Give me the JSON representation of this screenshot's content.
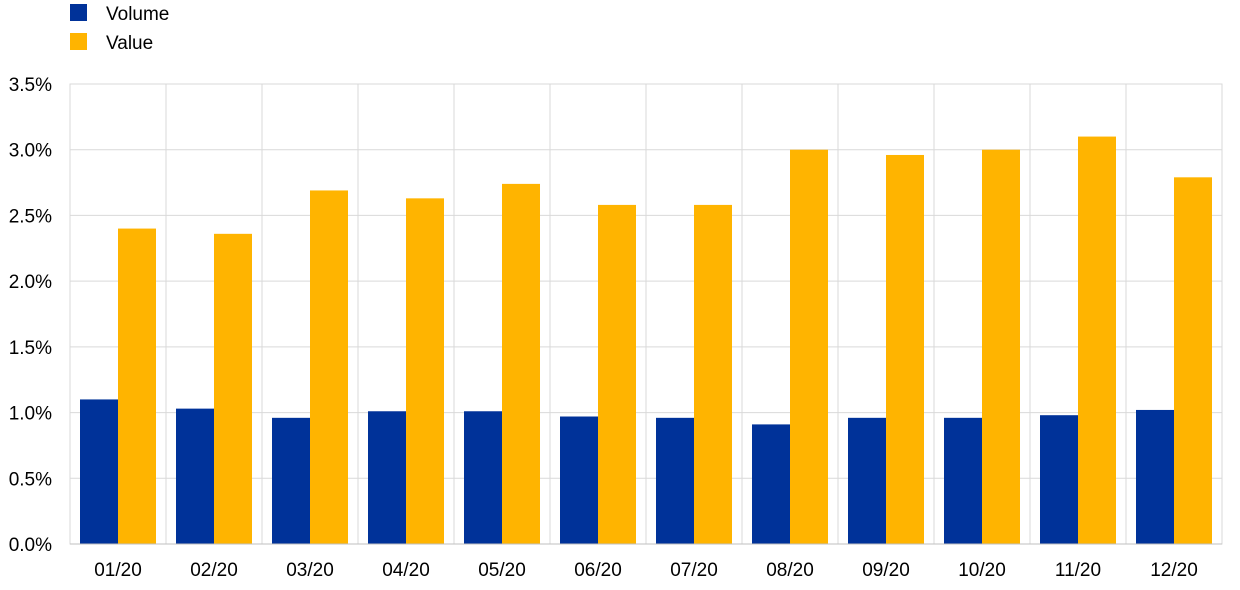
{
  "chart_data": {
    "type": "bar",
    "categories": [
      "01/20",
      "02/20",
      "03/20",
      "04/20",
      "05/20",
      "06/20",
      "07/20",
      "08/20",
      "09/20",
      "10/20",
      "11/20",
      "12/20"
    ],
    "series": [
      {
        "name": "Volume",
        "color": "#003299",
        "values": [
          1.1,
          1.03,
          0.96,
          1.01,
          1.01,
          0.97,
          0.96,
          0.91,
          0.96,
          0.96,
          0.98,
          1.02
        ]
      },
      {
        "name": "Value",
        "color": "#FFB400",
        "values": [
          2.4,
          2.36,
          2.69,
          2.63,
          2.74,
          2.58,
          2.58,
          3.0,
          2.96,
          3.0,
          3.1,
          2.79
        ]
      }
    ],
    "yticks": [
      "0.0%",
      "0.5%",
      "1.0%",
      "1.5%",
      "2.0%",
      "2.5%",
      "3.0%",
      "3.5%"
    ],
    "ylim": [
      0,
      3.5
    ],
    "ystep": 0.5,
    "title": "",
    "xlabel": "",
    "ylabel": "",
    "grid": true,
    "legend_position": "top-left"
  }
}
